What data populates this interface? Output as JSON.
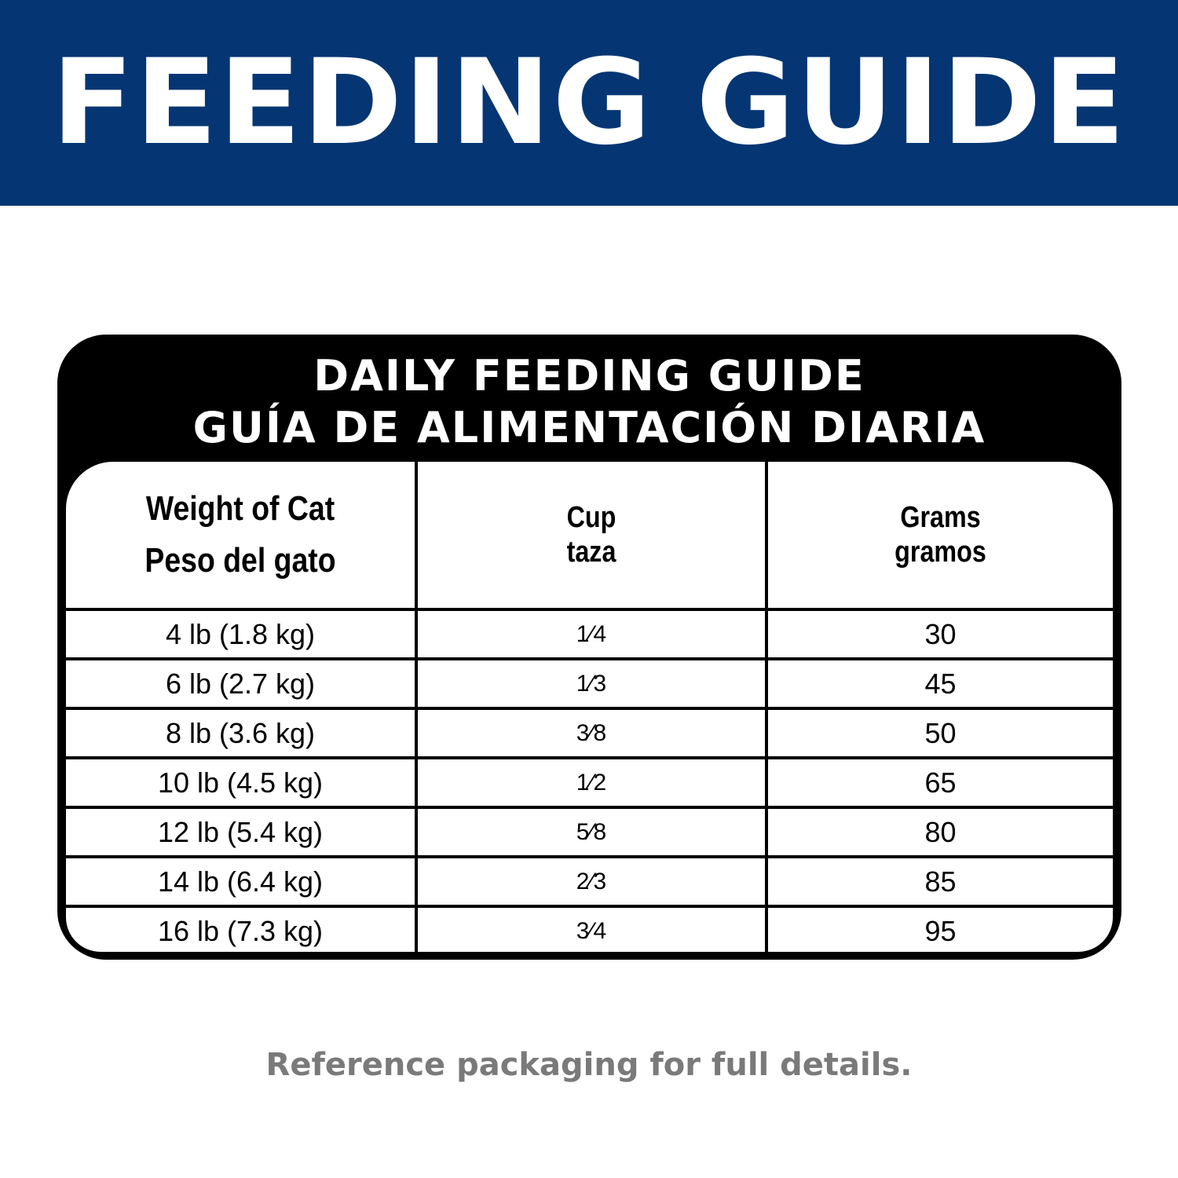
{
  "banner": {
    "title": "FEEDING GUIDE",
    "color": "#053673"
  },
  "table": {
    "title_en": "DAILY FEEDING GUIDE",
    "title_es": "GUÍA DE ALIMENTACIÓN DIARIA",
    "headers": [
      {
        "en": "Weight of Cat",
        "es": "Peso del gato"
      },
      {
        "en": "Cup",
        "es": "taza"
      },
      {
        "en": "Grams",
        "es": "gramos"
      }
    ],
    "rows": [
      {
        "weight": "4 lb (1.8 kg)",
        "cup": "1⁄4",
        "grams": "30"
      },
      {
        "weight": "6 lb (2.7 kg)",
        "cup": "1⁄3",
        "grams": "45"
      },
      {
        "weight": "8 lb (3.6 kg)",
        "cup": "3⁄8",
        "grams": "50"
      },
      {
        "weight": "10 lb (4.5 kg)",
        "cup": "1⁄2",
        "grams": "65"
      },
      {
        "weight": "12 lb (5.4 kg)",
        "cup": "5⁄8",
        "grams": "80"
      },
      {
        "weight": "14 lb (6.4 kg)",
        "cup": "2⁄3",
        "grams": "85"
      },
      {
        "weight": "16 lb (7.3 kg)",
        "cup": "3⁄4",
        "grams": "95"
      }
    ]
  },
  "footer": {
    "text": "Reference packaging for full details."
  }
}
